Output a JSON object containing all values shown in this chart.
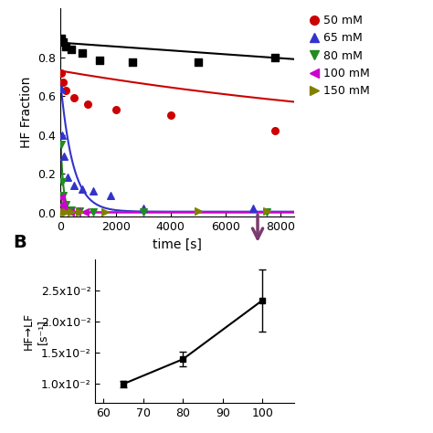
{
  "panel_A": {
    "xlim": [
      0,
      8500
    ],
    "ylim": [
      -0.02,
      1.05
    ],
    "xlabel": "time [s]",
    "ylabel": "HF Fraction",
    "xticks": [
      0,
      2000,
      4000,
      6000,
      8000
    ],
    "yticks": [
      0.0,
      0.2,
      0.4,
      0.6,
      0.8
    ],
    "series_35mM": {
      "color": "#000000",
      "marker": "s",
      "scatter_x": [
        30,
        100,
        200,
        400,
        800,
        1400,
        2600,
        5000,
        7800
      ],
      "scatter_y": [
        0.895,
        0.88,
        0.855,
        0.84,
        0.82,
        0.785,
        0.775,
        0.775,
        0.798
      ],
      "fit_x": [
        0,
        8500
      ],
      "fit_y": [
        0.875,
        0.79
      ]
    },
    "series_50mM": {
      "color": "#cc0000",
      "marker": "o",
      "scatter_x": [
        30,
        100,
        200,
        500,
        1000,
        2000,
        4000,
        7800
      ],
      "scatter_y": [
        0.72,
        0.67,
        0.63,
        0.59,
        0.56,
        0.53,
        0.5,
        0.42
      ],
      "fit_A": 0.39,
      "fit_k": 6.2e-05,
      "fit_C": 0.34
    },
    "series_65mM": {
      "color": "#3333cc",
      "marker": "^",
      "scatter_x": [
        30,
        60,
        120,
        250,
        500,
        800,
        1200,
        1800,
        3000,
        7000
      ],
      "scatter_y": [
        0.64,
        0.4,
        0.29,
        0.18,
        0.14,
        0.12,
        0.11,
        0.09,
        0.02,
        0.02
      ],
      "fit_A": 0.66,
      "fit_k": 0.0022,
      "fit_C": 0.005
    },
    "series_80mM": {
      "color": "#228B22",
      "marker": "v",
      "scatter_x": [
        30,
        60,
        100,
        200,
        400,
        700,
        1200,
        3000,
        7500
      ],
      "scatter_y": [
        0.35,
        0.16,
        0.09,
        0.04,
        0.015,
        0.01,
        0.005,
        0.005,
        0.005
      ],
      "fit_A": 0.37,
      "fit_k": 0.01,
      "fit_C": 0.002
    },
    "series_100mM": {
      "color": "#cc00cc",
      "marker": "<",
      "scatter_x": [
        30,
        60,
        100,
        200,
        350,
        600,
        900
      ],
      "scatter_y": [
        0.08,
        0.04,
        0.02,
        0.01,
        0.005,
        0.003,
        0.002
      ],
      "fit_A": 0.1,
      "fit_k": 0.03,
      "fit_C": 0.001
    },
    "series_150mM": {
      "color": "#808000",
      "marker": ">",
      "scatter_x": [
        30,
        60,
        100,
        200,
        400,
        700,
        1600,
        5000,
        7500
      ],
      "scatter_y": [
        0.005,
        0.005,
        0.005,
        0.005,
        0.005,
        0.005,
        0.005,
        0.007,
        0.008
      ]
    },
    "legend_entries": [
      {
        "label": "50 mM",
        "color": "#cc0000",
        "marker": "o"
      },
      {
        "label": "65 mM",
        "color": "#3333cc",
        "marker": "^"
      },
      {
        "label": "80 mM",
        "color": "#228B22",
        "marker": "v"
      },
      {
        "label": "100 mM",
        "color": "#cc00cc",
        "marker": "<"
      },
      {
        "label": "150 mM",
        "color": "#808000",
        "marker": ">"
      }
    ]
  },
  "panel_B": {
    "xlim": [
      58,
      108
    ],
    "ylim": [
      0.007,
      0.03
    ],
    "data_x": [
      65,
      80,
      100
    ],
    "data_y": [
      0.01,
      0.014,
      0.0235
    ],
    "data_yerr": [
      0.0005,
      0.0012,
      0.005
    ],
    "ytick_vals": [
      0.01,
      0.015,
      0.02,
      0.025
    ],
    "ytick_labels": [
      "1.0x10⁻²",
      "1.5x10⁻²",
      "2.0x10⁻²",
      "2.5x10⁻²"
    ],
    "ylabel_line1": "HF→LF",
    "ylabel_line2": "[s⁻¹]"
  },
  "arrow_color": "#7B3B6E",
  "label_A_color": "#000000",
  "label_B_color": "#000000"
}
